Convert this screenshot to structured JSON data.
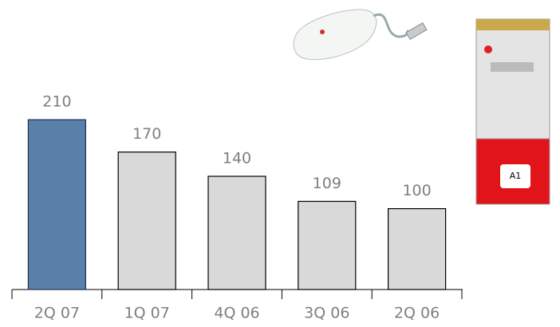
{
  "chart_data": {
    "type": "bar",
    "categories": [
      "2Q 07",
      "1Q 07",
      "4Q 06",
      "3Q 06",
      "2Q 06"
    ],
    "values": [
      210,
      170,
      140,
      109,
      100
    ],
    "colors": [
      "#5a7fa8",
      "#d9d9d9",
      "#d9d9d9",
      "#d9d9d9",
      "#d9d9d9"
    ]
  }
}
